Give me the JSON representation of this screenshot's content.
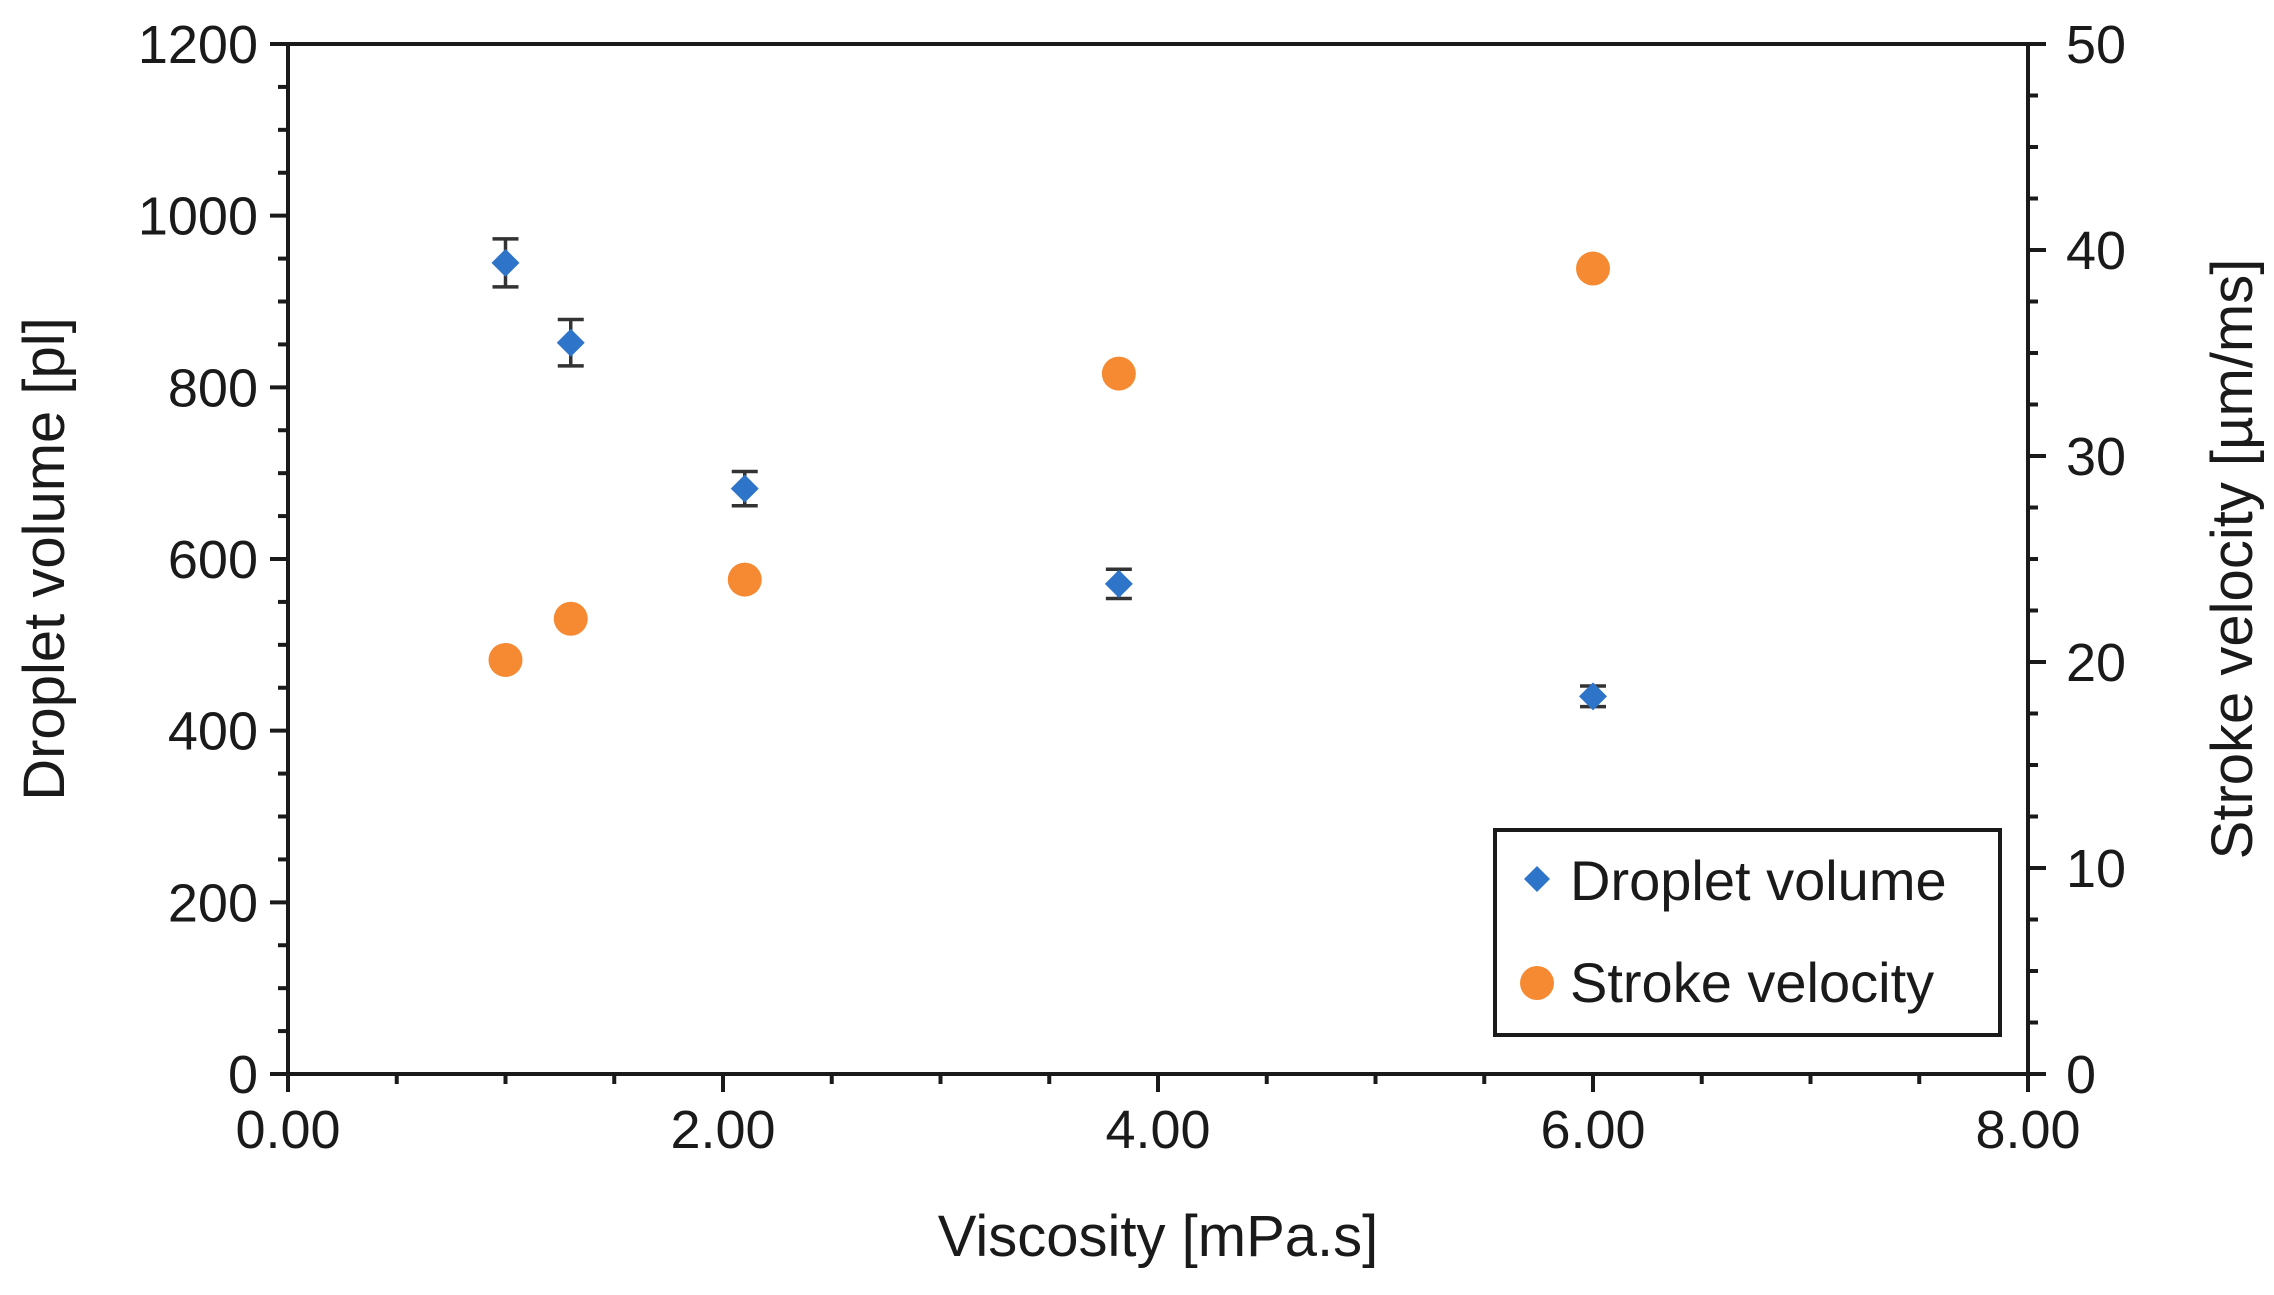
{
  "chart_data": {
    "type": "scatter",
    "title": "",
    "xlabel": "Viscosity [mPa.s]",
    "ylabel": "Droplet volume [pl]",
    "y2label": "Stroke velocity [µm/ms]",
    "xlim": [
      0,
      8
    ],
    "ylim": [
      0,
      1200
    ],
    "y2lim": [
      0,
      50
    ],
    "x_ticks": [
      0,
      2,
      4,
      6,
      8
    ],
    "x_tick_labels": [
      "0.00",
      "2.00",
      "4.00",
      "6.00",
      "8.00"
    ],
    "y_ticks": [
      0,
      200,
      400,
      600,
      800,
      1000,
      1200
    ],
    "y_tick_labels": [
      "0",
      "200",
      "400",
      "600",
      "800",
      "1000",
      "1200"
    ],
    "y2_ticks": [
      0,
      10,
      20,
      30,
      40,
      50
    ],
    "y2_tick_labels": [
      "0",
      "10",
      "20",
      "30",
      "40",
      "50"
    ],
    "grid": false,
    "legend_position": "bottom-right",
    "series": [
      {
        "name": "Droplet volume",
        "axis": "left",
        "marker": "diamond",
        "color": "#2E75C9",
        "x": [
          1.0,
          1.3,
          2.1,
          3.82,
          6.0
        ],
        "y": [
          945,
          852,
          682,
          571,
          440
        ],
        "error": [
          28,
          27,
          20,
          17,
          12
        ]
      },
      {
        "name": "Stroke velocity",
        "axis": "right",
        "marker": "circle",
        "color": "#F58A33",
        "x": [
          1.0,
          1.3,
          2.1,
          3.82,
          6.0
        ],
        "y": [
          20.1,
          22.1,
          24.0,
          34.0,
          39.1
        ]
      }
    ]
  }
}
